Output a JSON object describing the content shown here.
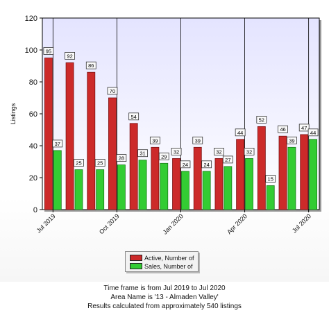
{
  "chart_data": {
    "type": "bar",
    "ylabel": "Listings",
    "xlabel": "",
    "ylim": [
      0,
      120
    ],
    "yticks": [
      0,
      20,
      40,
      60,
      80,
      100,
      120
    ],
    "grid": "vertical lines at labeled months",
    "legend_placement": "bottom-center",
    "categories": [
      "Jul 2019",
      "Aug 2019",
      "Sep 2019",
      "Oct 2019",
      "Nov 2019",
      "Dec 2019",
      "Jan 2020",
      "Feb 2020",
      "Mar 2020",
      "Apr 2020",
      "May 2020",
      "Jun 2020",
      "Jul 2020"
    ],
    "xtick_labels": [
      "Jul 2019",
      "Oct 2019",
      "Jan 2020",
      "Apr 2020",
      "Jul 2020"
    ],
    "xtick_indices": [
      0,
      3,
      6,
      9,
      12
    ],
    "series": [
      {
        "name": "Active, Number of",
        "color": "#cc2a2a",
        "values": [
          95,
          92,
          86,
          70,
          54,
          39,
          32,
          39,
          32,
          44,
          52,
          46,
          47
        ]
      },
      {
        "name": "Sales, Number of",
        "color": "#33cc33",
        "values": [
          37,
          25,
          25,
          28,
          31,
          29,
          24,
          24,
          27,
          32,
          15,
          39,
          44
        ]
      }
    ]
  },
  "footer": {
    "line1": "Time frame is from Jul 2019 to Jul 2020",
    "line2": "Area Name is '13 - Almaden Valley'",
    "line3": "Results calculated from approximately 540 listings"
  }
}
